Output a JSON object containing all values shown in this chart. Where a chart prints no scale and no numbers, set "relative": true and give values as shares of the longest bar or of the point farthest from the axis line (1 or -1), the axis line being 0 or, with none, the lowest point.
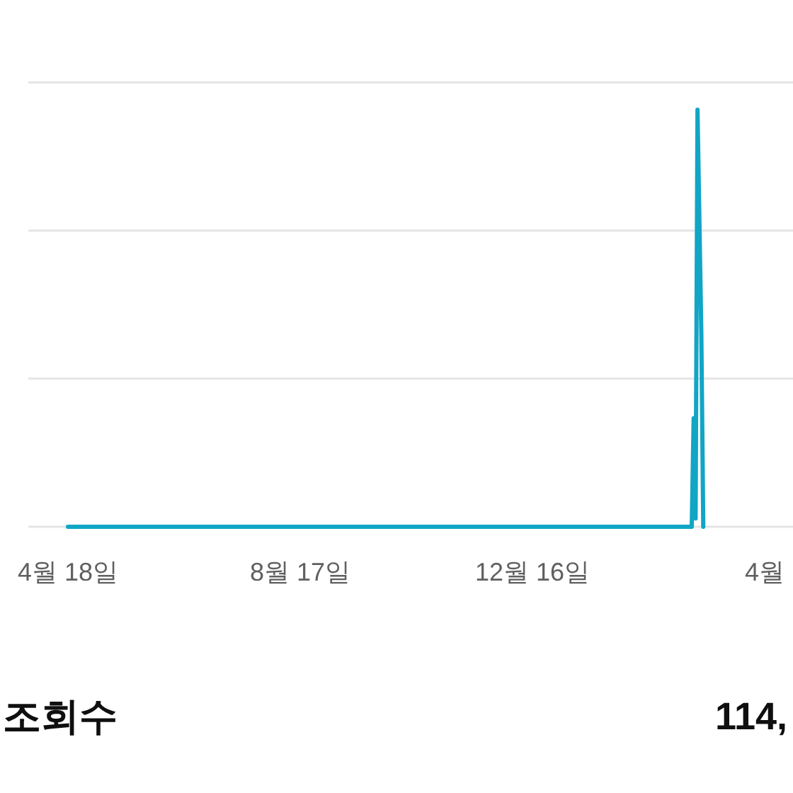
{
  "chart_data": {
    "type": "line",
    "relative": true,
    "categories": [
      "4월 18일",
      null,
      null,
      null,
      null,
      null,
      null,
      null,
      null,
      null,
      null,
      null,
      null,
      null,
      null,
      null,
      null,
      null,
      null,
      null,
      null,
      null,
      null,
      null,
      null,
      null,
      null,
      null,
      null,
      null,
      null,
      null,
      null,
      null,
      null,
      null,
      null,
      null,
      null,
      null,
      null,
      null,
      null,
      null,
      null,
      null,
      null,
      null,
      null,
      null,
      null,
      null,
      null,
      null,
      null,
      null,
      null,
      null,
      null,
      null,
      null,
      null,
      null,
      null,
      null,
      null,
      null,
      null,
      null,
      null,
      null,
      null,
      null,
      null,
      null,
      null,
      null,
      null,
      null,
      null,
      null,
      null,
      null,
      null,
      null,
      null,
      null,
      null,
      null,
      null,
      null,
      null,
      null,
      null,
      null,
      null,
      null,
      null,
      null,
      null,
      null,
      null,
      null,
      null,
      null,
      null,
      null,
      null,
      null,
      null,
      null,
      null,
      null,
      null,
      null,
      null,
      null,
      null,
      null,
      null,
      null,
      "8월 17일",
      null,
      null,
      null,
      null,
      null,
      null,
      null,
      null,
      null,
      null,
      null,
      null,
      null,
      null,
      null,
      null,
      null,
      null,
      null,
      null,
      null,
      null,
      null,
      null,
      null,
      null,
      null,
      null,
      null,
      null,
      null,
      null,
      null,
      null,
      null,
      null,
      null,
      null,
      null,
      null,
      null,
      null,
      null,
      null,
      null,
      null,
      null,
      null,
      null,
      null,
      null,
      null,
      null,
      null,
      null,
      null,
      null,
      null,
      null,
      null,
      null,
      null,
      null,
      null,
      null,
      null,
      null,
      null,
      null,
      null,
      null,
      null,
      null,
      null,
      null,
      null,
      null,
      null,
      null,
      null,
      null,
      null,
      null,
      null,
      null,
      null,
      null,
      null,
      null,
      null,
      null,
      null,
      null,
      null,
      null,
      null,
      null,
      null,
      null,
      null,
      null,
      null,
      null,
      null,
      null,
      null,
      null,
      null,
      null,
      null,
      null,
      null,
      null,
      null,
      null,
      null,
      null,
      null,
      null,
      null,
      "12월 16일",
      null,
      null,
      null,
      null,
      null,
      null,
      null,
      null,
      null,
      null,
      null,
      null,
      null,
      null,
      null,
      null,
      null,
      null,
      null,
      null,
      null,
      null,
      null,
      null,
      null,
      null,
      null,
      null,
      null,
      null,
      null,
      null,
      null,
      null,
      null,
      null,
      null,
      null,
      null,
      null,
      null,
      null,
      null,
      null,
      null,
      null,
      null,
      null,
      null,
      null,
      null,
      null,
      null,
      null,
      null,
      null,
      null,
      null,
      null,
      null,
      null,
      null,
      null,
      null,
      null,
      null,
      null,
      null,
      null,
      null,
      null,
      null,
      null,
      null,
      null,
      null,
      null,
      null,
      null,
      null,
      null,
      null,
      null,
      null,
      null,
      null,
      null,
      null,
      null,
      null,
      null,
      null,
      null,
      null,
      null,
      null,
      null,
      null,
      null,
      null,
      null,
      null,
      null,
      null,
      null,
      null,
      null,
      null,
      null,
      null,
      null,
      null,
      null,
      null,
      null,
      null,
      null,
      null,
      null,
      null,
      "4월"
    ],
    "series": [
      {
        "color": "#11a5c6",
        "values": [
          0,
          0,
          0,
          0,
          0,
          0,
          0,
          0,
          0,
          0,
          0,
          0,
          0,
          0,
          0,
          0,
          0,
          0,
          0,
          0,
          0,
          0,
          0,
          0,
          0,
          0,
          0,
          0,
          0,
          0,
          0,
          0,
          0,
          0,
          0,
          0,
          0,
          0,
          0,
          0,
          0,
          0,
          0,
          0,
          0,
          0,
          0,
          0,
          0,
          0,
          0,
          0,
          0,
          0,
          0,
          0,
          0,
          0,
          0,
          0,
          0,
          0,
          0,
          0,
          0,
          0,
          0,
          0,
          0,
          0,
          0,
          0,
          0,
          0,
          0,
          0,
          0,
          0,
          0,
          0,
          0,
          0,
          0,
          0,
          0,
          0,
          0,
          0,
          0,
          0,
          0,
          0,
          0,
          0,
          0,
          0,
          0,
          0,
          0,
          0,
          0,
          0,
          0,
          0,
          0,
          0,
          0,
          0,
          0,
          0,
          0,
          0,
          0,
          0,
          0,
          0,
          0,
          0,
          0,
          0,
          0,
          0,
          0,
          0,
          0,
          0,
          0,
          0,
          0,
          0,
          0,
          0,
          0,
          0,
          0,
          0,
          0,
          0,
          0,
          0,
          0,
          0,
          0,
          0,
          0,
          0,
          0,
          0,
          0,
          0,
          0,
          0,
          0,
          0,
          0,
          0,
          0,
          0,
          0,
          0,
          0,
          0,
          0,
          0,
          0,
          0,
          0,
          0,
          0,
          0,
          0,
          0,
          0,
          0,
          0,
          0,
          0,
          0,
          0,
          0,
          0,
          0,
          0,
          0,
          0,
          0,
          0,
          0,
          0,
          0,
          0,
          0,
          0,
          0,
          0,
          0,
          0,
          0,
          0,
          0,
          0,
          0,
          0,
          0,
          0,
          0,
          0,
          0,
          0,
          0,
          0,
          0,
          0,
          0,
          0,
          0,
          0,
          0,
          0,
          0,
          0,
          0,
          0,
          0,
          0,
          0,
          0,
          0,
          0,
          0,
          0,
          0,
          0,
          0,
          0,
          0,
          0,
          0,
          0,
          0,
          0,
          0,
          0,
          0,
          0,
          0,
          0,
          0,
          0,
          0,
          0,
          0,
          0,
          0,
          0,
          0,
          0,
          0,
          0,
          0,
          0,
          0,
          0,
          0,
          0,
          0,
          0,
          0,
          0,
          0,
          0,
          0,
          0,
          0,
          0,
          0,
          0,
          0,
          0,
          0,
          0,
          0,
          0,
          0,
          0,
          0,
          0,
          0,
          0,
          0,
          0,
          0,
          0,
          0,
          0,
          0,
          0,
          0,
          0,
          0,
          0,
          0,
          0,
          0,
          0,
          0,
          0,
          0,
          0,
          0,
          0,
          0,
          0,
          0,
          0,
          0,
          0,
          0,
          0,
          0,
          0,
          0,
          0,
          0,
          0,
          0,
          0.26,
          0.02,
          1,
          0.73,
          0.46,
          0,
          null,
          null,
          null,
          null,
          null,
          null,
          null,
          null,
          null,
          null,
          null,
          null,
          null,
          null,
          null,
          null,
          null,
          null,
          null,
          null,
          null,
          null,
          null,
          null,
          null,
          null,
          null,
          null,
          null,
          null,
          null,
          null
        ]
      }
    ],
    "ref_lines": [
      {
        "axis": "y",
        "value": 0,
        "color": "#e5e5e5"
      },
      {
        "axis": "y",
        "value": 0.355,
        "color": "#e5e5e5"
      },
      {
        "axis": "y",
        "value": 0.71,
        "color": "#e5e5e5"
      },
      {
        "axis": "y",
        "value": 1.065,
        "color": "#e5e5e5"
      }
    ],
    "annotations": [
      "조회수",
      "114,"
    ]
  }
}
